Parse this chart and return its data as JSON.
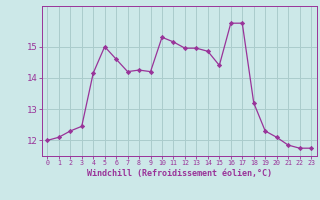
{
  "hours": [
    0,
    1,
    2,
    3,
    4,
    5,
    6,
    7,
    8,
    9,
    10,
    11,
    12,
    13,
    14,
    15,
    16,
    17,
    18,
    19,
    20,
    21,
    22,
    23
  ],
  "values": [
    12.0,
    12.1,
    12.3,
    12.45,
    14.15,
    15.0,
    14.6,
    14.2,
    14.25,
    14.2,
    15.3,
    15.15,
    14.95,
    14.95,
    14.85,
    14.4,
    15.75,
    15.75,
    13.2,
    12.3,
    12.1,
    11.85,
    11.75,
    11.75
  ],
  "line_color": "#993399",
  "marker": "D",
  "marker_size": 2.2,
  "bg_color": "#cce8e8",
  "grid_color": "#aacccc",
  "ylim": [
    11.5,
    16.3
  ],
  "yticks": [
    12,
    13,
    14,
    15
  ],
  "xlabel": "Windchill (Refroidissement éolien,°C)",
  "xlabel_color": "#993399",
  "tick_color": "#993399"
}
